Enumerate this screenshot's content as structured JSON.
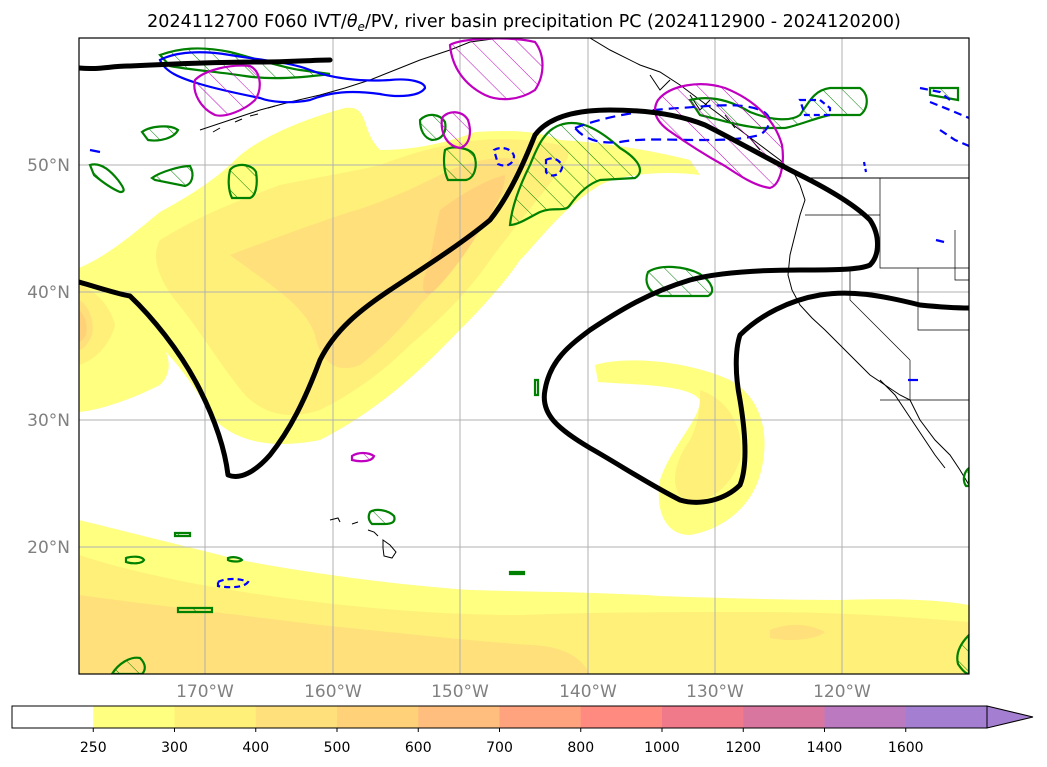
{
  "title": {
    "prefix": "2024112700 F060 IVT/",
    "theta": "θ",
    "sub": "e",
    "suffix": "/PV, river basin precipitation PC (2024112900 - 2024120200)"
  },
  "map": {
    "lat_labels": [
      "50°N",
      "40°N",
      "30°N",
      "20°N"
    ],
    "lon_labels": [
      "170°W",
      "160°W",
      "150°W",
      "140°W",
      "130°W",
      "120°W"
    ]
  },
  "colorbar": {
    "labels": [
      "250",
      "300",
      "400",
      "500",
      "600",
      "700",
      "800",
      "1000",
      "1200",
      "1400",
      "1600"
    ],
    "colors": [
      "#ffffff",
      "#ffff80",
      "#fff07a",
      "#ffe07a",
      "#ffd27a",
      "#ffbe7d",
      "#ffa37f",
      "#ff8a80",
      "#f07a8a",
      "#d876a0",
      "#bb7ac0",
      "#a47ed0"
    ]
  },
  "colors": {
    "ivt_contour": "#000000",
    "green_contour": "#008000",
    "blue_contour": "#0000ff",
    "magenta_contour": "#c000c0",
    "grid": "#b0b0b0",
    "coast": "#000000"
  }
}
